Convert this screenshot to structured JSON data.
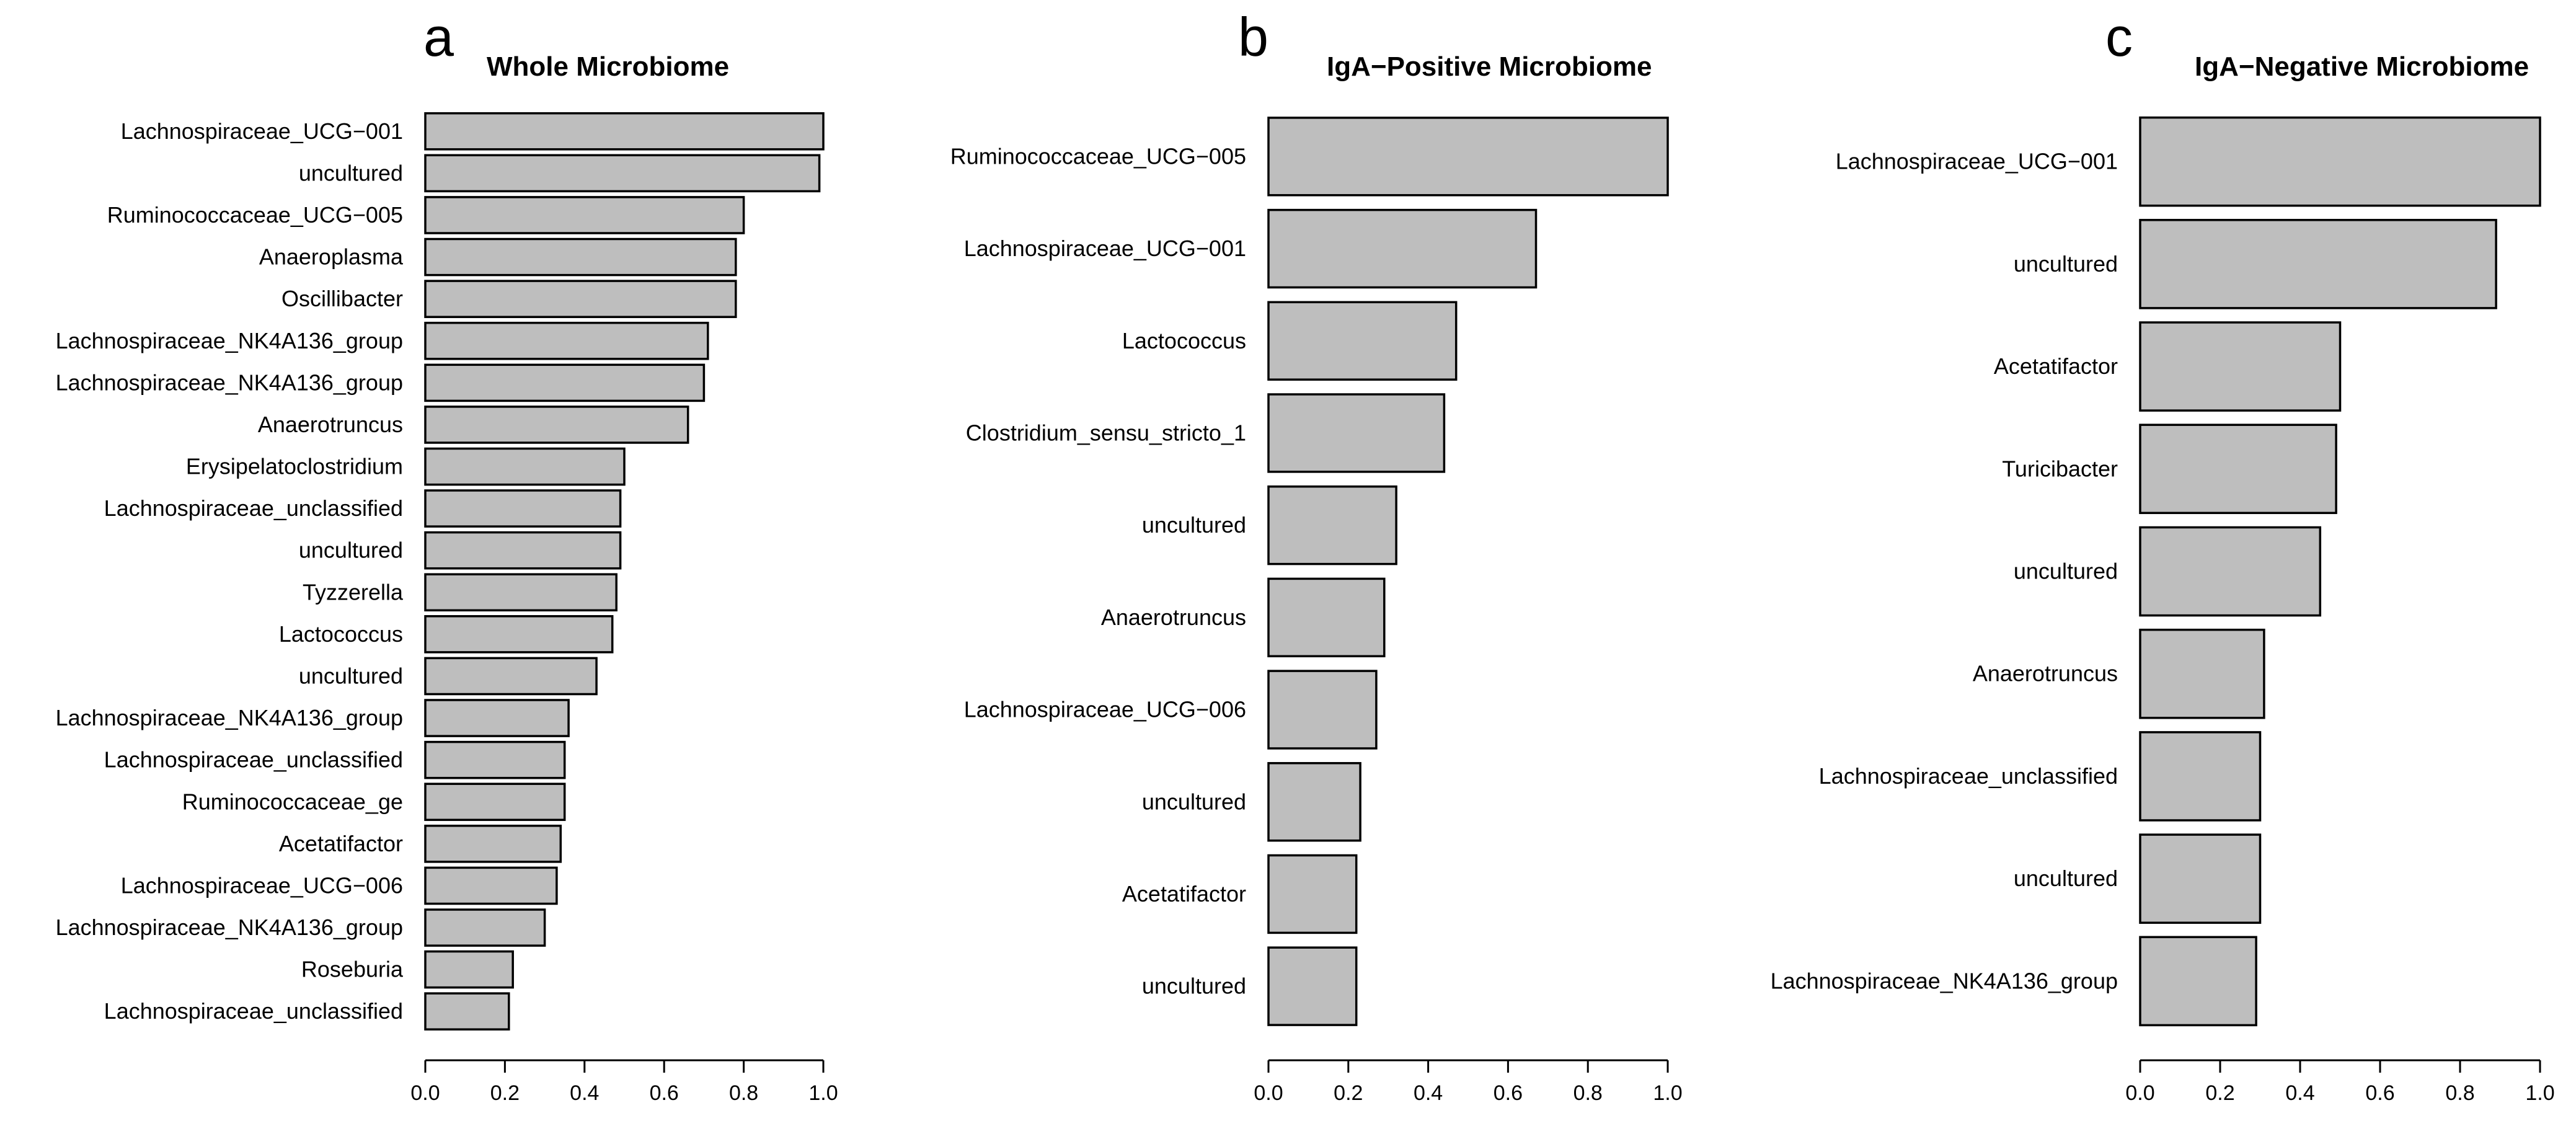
{
  "colors": {
    "bar_fill": "#bebebe",
    "bar_stroke": "#000000",
    "text": "#000000"
  },
  "chart_data": [
    {
      "type": "bar",
      "orientation": "horizontal",
      "panel_letter": "a",
      "title": "Whole Microbiome",
      "xlim": [
        0,
        1
      ],
      "ticks": [
        "0.0",
        "0.2",
        "0.4",
        "0.6",
        "0.8",
        "1.0"
      ],
      "categories": [
        "Lachnospiraceae_UCG−001",
        "uncultured",
        "Ruminococcaceae_UCG−005",
        "Anaeroplasma",
        "Oscillibacter",
        "Lachnospiraceae_NK4A136_group",
        "Lachnospiraceae_NK4A136_group",
        "Anaerotruncus",
        "Erysipelatoclostridium",
        "Lachnospiraceae_unclassified",
        "uncultured",
        "Tyzzerella",
        "Lactococcus",
        "uncultured",
        "Lachnospiraceae_NK4A136_group",
        "Lachnospiraceae_unclassified",
        "Ruminococcaceae_ge",
        "Acetatifactor",
        "Lachnospiraceae_UCG−006",
        "Lachnospiraceae_NK4A136_group",
        "Roseburia",
        "Lachnospiraceae_unclassified"
      ],
      "values": [
        1.0,
        0.99,
        0.8,
        0.78,
        0.78,
        0.71,
        0.7,
        0.66,
        0.5,
        0.49,
        0.49,
        0.48,
        0.47,
        0.43,
        0.36,
        0.35,
        0.35,
        0.34,
        0.33,
        0.3,
        0.22,
        0.21
      ]
    },
    {
      "type": "bar",
      "orientation": "horizontal",
      "panel_letter": "b",
      "title": "IgA−Positive Microbiome",
      "xlim": [
        0,
        1
      ],
      "ticks": [
        "0.0",
        "0.2",
        "0.4",
        "0.6",
        "0.8",
        "1.0"
      ],
      "categories": [
        "Ruminococcaceae_UCG−005",
        "Lachnospiraceae_UCG−001",
        "Lactococcus",
        "Clostridium_sensu_stricto_1",
        "uncultured",
        "Anaerotruncus",
        "Lachnospiraceae_UCG−006",
        "uncultured",
        "Acetatifactor",
        "uncultured"
      ],
      "values": [
        1.0,
        0.67,
        0.47,
        0.44,
        0.32,
        0.29,
        0.27,
        0.23,
        0.22,
        0.22
      ]
    },
    {
      "type": "bar",
      "orientation": "horizontal",
      "panel_letter": "c",
      "title": "IgA−Negative Microbiome",
      "xlim": [
        0,
        1
      ],
      "ticks": [
        "0.0",
        "0.2",
        "0.4",
        "0.6",
        "0.8",
        "1.0"
      ],
      "categories": [
        "Lachnospiraceae_UCG−001",
        "uncultured",
        "Acetatifactor",
        "Turicibacter",
        "uncultured",
        "Anaerotruncus",
        "Lachnospiraceae_unclassified",
        "uncultured",
        "Lachnospiraceae_NK4A136_group"
      ],
      "values": [
        1.0,
        0.89,
        0.5,
        0.49,
        0.45,
        0.31,
        0.3,
        0.3,
        0.29
      ]
    }
  ]
}
